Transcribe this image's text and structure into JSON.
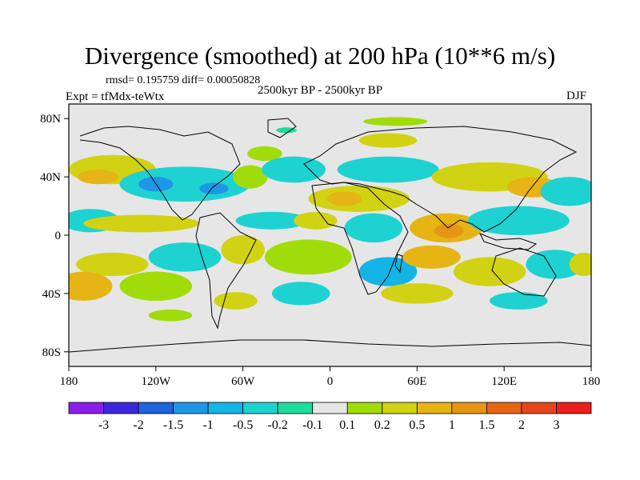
{
  "chart_data": {
    "type": "heatmap",
    "title": "Divergence (smoothed) at 200 hPa (10**6 m/s)",
    "stats": "rmsd= 0.195759 diff= 0.00050828",
    "period": "2500kyr BP - 2500kyr BP",
    "experiment": "Expt = tfMdx-teWtx",
    "season": "DJF",
    "xlim": [
      -180,
      180
    ],
    "ylim": [
      -90,
      90
    ],
    "x_ticks": [
      {
        "value": -180,
        "label": "180"
      },
      {
        "value": -120,
        "label": "120W"
      },
      {
        "value": -60,
        "label": "60W"
      },
      {
        "value": 0,
        "label": "0"
      },
      {
        "value": 60,
        "label": "60E"
      },
      {
        "value": 120,
        "label": "120E"
      },
      {
        "value": 180,
        "label": "180"
      }
    ],
    "y_ticks": [
      {
        "value": 80,
        "label": "80N"
      },
      {
        "value": 40,
        "label": "40N"
      },
      {
        "value": 0,
        "label": "0"
      },
      {
        "value": -40,
        "label": "40S"
      },
      {
        "value": -80,
        "label": "80S"
      }
    ],
    "colorbar": {
      "colors": [
        "#8c1eec",
        "#3c28dc",
        "#1e64dc",
        "#1e96e6",
        "#14b4e6",
        "#1ed2d2",
        "#1edc9b",
        "#e6e6e6",
        "#a0dc0a",
        "#d2d214",
        "#e6b414",
        "#e69614",
        "#e66414",
        "#e6461e",
        "#eb1e1e"
      ],
      "labels": [
        "-3",
        "-2",
        "-1.5",
        "-1",
        "-0.5",
        "-0.2",
        "-0.1",
        "0.1",
        "0.2",
        "0.5",
        "1",
        "1.5",
        "2",
        "3"
      ]
    },
    "regions": [
      {
        "lon": 45,
        "lat": 78,
        "rx": 22,
        "ry": 3,
        "bin": 8
      },
      {
        "lon": -30,
        "lat": 72,
        "rx": 7,
        "ry": 2,
        "bin": 6
      },
      {
        "lon": -45,
        "lat": 56,
        "rx": 12,
        "ry": 5,
        "bin": 8
      },
      {
        "lon": 40,
        "lat": 65,
        "rx": 20,
        "ry": 5,
        "bin": 9
      },
      {
        "lon": -150,
        "lat": 45,
        "rx": 30,
        "ry": 10,
        "bin": 9
      },
      {
        "lon": -160,
        "lat": 40,
        "rx": 14,
        "ry": 5,
        "bin": 10
      },
      {
        "lon": -100,
        "lat": 35,
        "rx": 45,
        "ry": 12,
        "bin": 5
      },
      {
        "lon": -120,
        "lat": 35,
        "rx": 12,
        "ry": 5,
        "bin": 3
      },
      {
        "lon": -80,
        "lat": 32,
        "rx": 10,
        "ry": 4,
        "bin": 3
      },
      {
        "lon": -55,
        "lat": 40,
        "rx": 12,
        "ry": 8,
        "bin": 8
      },
      {
        "lon": -25,
        "lat": 45,
        "rx": 22,
        "ry": 9,
        "bin": 5
      },
      {
        "lon": 40,
        "lat": 45,
        "rx": 35,
        "ry": 9,
        "bin": 5
      },
      {
        "lon": 20,
        "lat": 25,
        "rx": 35,
        "ry": 9,
        "bin": 9
      },
      {
        "lon": 10,
        "lat": 25,
        "rx": 12,
        "ry": 5,
        "bin": 10
      },
      {
        "lon": 110,
        "lat": 40,
        "rx": 40,
        "ry": 10,
        "bin": 9
      },
      {
        "lon": 140,
        "lat": 33,
        "rx": 18,
        "ry": 7,
        "bin": 10
      },
      {
        "lon": 165,
        "lat": 30,
        "rx": 20,
        "ry": 10,
        "bin": 5
      },
      {
        "lon": -165,
        "lat": 10,
        "rx": 20,
        "ry": 8,
        "bin": 5
      },
      {
        "lon": -130,
        "lat": 8,
        "rx": 40,
        "ry": 6,
        "bin": 9
      },
      {
        "lon": -40,
        "lat": 10,
        "rx": 25,
        "ry": 6,
        "bin": 5
      },
      {
        "lon": -10,
        "lat": 10,
        "rx": 15,
        "ry": 6,
        "bin": 9
      },
      {
        "lon": 30,
        "lat": 5,
        "rx": 20,
        "ry": 10,
        "bin": 5
      },
      {
        "lon": 80,
        "lat": 5,
        "rx": 25,
        "ry": 10,
        "bin": 10
      },
      {
        "lon": 82,
        "lat": 3,
        "rx": 10,
        "ry": 5,
        "bin": 11
      },
      {
        "lon": 130,
        "lat": 10,
        "rx": 35,
        "ry": 10,
        "bin": 5
      },
      {
        "lon": -150,
        "lat": -20,
        "rx": 25,
        "ry": 8,
        "bin": 9
      },
      {
        "lon": -100,
        "lat": -15,
        "rx": 25,
        "ry": 10,
        "bin": 5
      },
      {
        "lon": -60,
        "lat": -10,
        "rx": 15,
        "ry": 10,
        "bin": 9
      },
      {
        "lon": -15,
        "lat": -15,
        "rx": 30,
        "ry": 12,
        "bin": 8
      },
      {
        "lon": 40,
        "lat": -25,
        "rx": 20,
        "ry": 10,
        "bin": 4
      },
      {
        "lon": 70,
        "lat": -15,
        "rx": 20,
        "ry": 8,
        "bin": 10
      },
      {
        "lon": 110,
        "lat": -25,
        "rx": 25,
        "ry": 10,
        "bin": 9
      },
      {
        "lon": 155,
        "lat": -20,
        "rx": 20,
        "ry": 10,
        "bin": 5
      },
      {
        "lon": 175,
        "lat": -20,
        "rx": 10,
        "ry": 8,
        "bin": 9
      },
      {
        "lon": -170,
        "lat": -35,
        "rx": 20,
        "ry": 10,
        "bin": 10
      },
      {
        "lon": -120,
        "lat": -35,
        "rx": 25,
        "ry": 10,
        "bin": 8
      },
      {
        "lon": -65,
        "lat": -45,
        "rx": 15,
        "ry": 6,
        "bin": 9
      },
      {
        "lon": -20,
        "lat": -40,
        "rx": 20,
        "ry": 8,
        "bin": 5
      },
      {
        "lon": 60,
        "lat": -40,
        "rx": 25,
        "ry": 7,
        "bin": 9
      },
      {
        "lon": 130,
        "lat": -45,
        "rx": 20,
        "ry": 6,
        "bin": 5
      },
      {
        "lon": -110,
        "lat": -55,
        "rx": 15,
        "ry": 4,
        "bin": 8
      }
    ]
  }
}
